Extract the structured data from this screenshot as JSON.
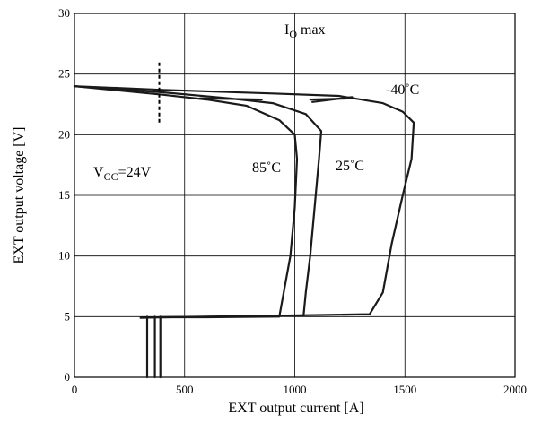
{
  "chart_data": {
    "type": "line",
    "title": "",
    "xlabel": "EXT output current [A]",
    "ylabel": "EXT output voltage [V]",
    "xlim": [
      0,
      2000
    ],
    "ylim": [
      0,
      30
    ],
    "x_ticks": [
      0,
      500,
      1000,
      1500,
      2000
    ],
    "y_ticks": [
      0,
      5,
      10,
      15,
      20,
      25,
      30
    ],
    "grid": true,
    "x_tick_labels": [
      "0",
      "500",
      "1000",
      "1500",
      "2000"
    ],
    "y_tick_labels": [
      "0",
      "5",
      "10",
      "15",
      "20",
      "25",
      "30"
    ],
    "annotations": {
      "io_max": {
        "main": "I",
        "sub": "O",
        "rest": " max"
      },
      "vcc": {
        "main": "V",
        "sub": "CC",
        "rest": "=24V"
      }
    },
    "marker_line": {
      "x": 385,
      "y_from": 21,
      "y_to": 26
    },
    "series": [
      {
        "name": "-40˚C",
        "points": [
          [
            0,
            24
          ],
          [
            400,
            23.7
          ],
          [
            900,
            23.4
          ],
          [
            1200,
            23.2
          ],
          [
            1400,
            22.6
          ],
          [
            1490,
            21.9
          ],
          [
            1540,
            21
          ],
          [
            1530,
            18
          ],
          [
            1490,
            15
          ],
          [
            1440,
            11
          ],
          [
            1400,
            7
          ],
          [
            1340,
            5.2
          ],
          [
            800,
            5.05
          ],
          [
            400,
            4.95
          ],
          [
            300,
            4.9
          ]
        ]
      },
      {
        "name": "25˚C",
        "points": [
          [
            0,
            24
          ],
          [
            400,
            23.5
          ],
          [
            700,
            23.0
          ],
          [
            900,
            22.6
          ],
          [
            1050,
            21.7
          ],
          [
            1120,
            20.3
          ],
          [
            1110,
            18
          ],
          [
            1090,
            14
          ],
          [
            1070,
            10
          ],
          [
            1050,
            7
          ],
          [
            1040,
            5.1
          ],
          [
            700,
            5.0
          ],
          [
            400,
            4.95
          ]
        ]
      },
      {
        "name": "85˚C",
        "points": [
          [
            0,
            24
          ],
          [
            400,
            23.3
          ],
          [
            600,
            22.9
          ],
          [
            780,
            22.4
          ],
          [
            930,
            21.2
          ],
          [
            1000,
            20
          ],
          [
            1010,
            18
          ],
          [
            1000,
            14
          ],
          [
            980,
            10
          ],
          [
            950,
            7
          ],
          [
            930,
            5.0
          ],
          [
            600,
            4.95
          ],
          [
            380,
            4.95
          ]
        ]
      }
    ],
    "extra_segments": [
      {
        "points": [
          [
            570,
            23.0
          ],
          [
            850,
            22.9
          ]
        ]
      },
      {
        "points": [
          [
            1070,
            22.9
          ],
          [
            1270,
            23.0
          ]
        ]
      },
      {
        "points": [
          [
            1260,
            23.1
          ],
          [
            1080,
            22.7
          ]
        ]
      }
    ],
    "bottom_drops": [
      {
        "points": [
          [
            330,
            5
          ],
          [
            330,
            0
          ]
        ]
      },
      {
        "points": [
          [
            365,
            5
          ],
          [
            365,
            0
          ]
        ]
      },
      {
        "points": [
          [
            390,
            5
          ],
          [
            390,
            0
          ]
        ]
      }
    ]
  }
}
